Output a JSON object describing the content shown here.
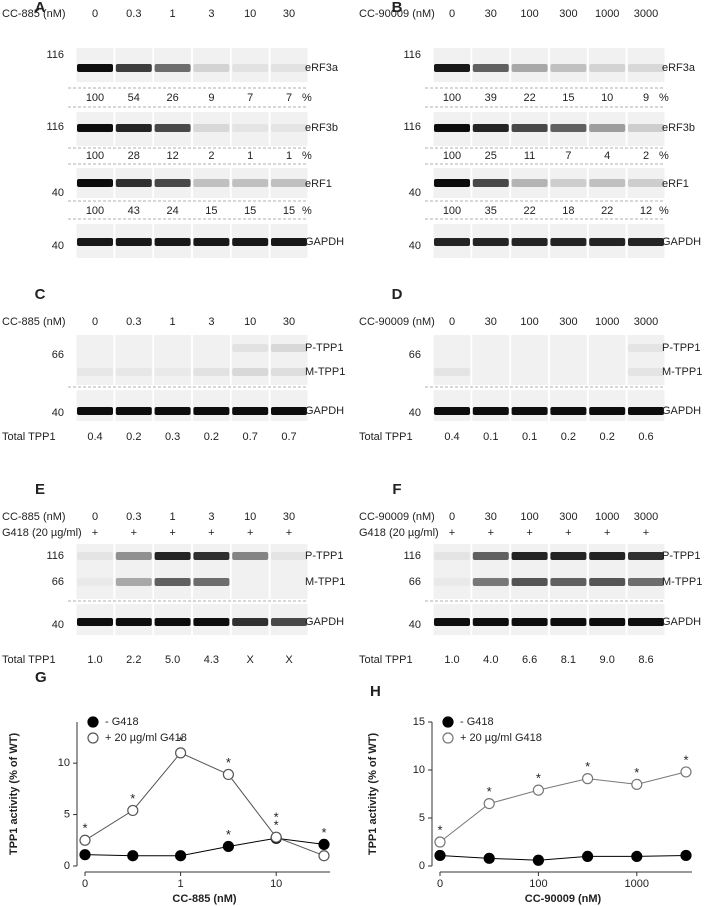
{
  "panels": [
    {
      "letter": "A",
      "treatments": [
        {
          "label": "CC-885 (nM)",
          "values": [
            "0",
            "0.3",
            "1",
            "3",
            "10",
            "30"
          ]
        }
      ],
      "blots": [
        {
          "markers": [
            "116"
          ],
          "labels": [
            "eRF3a"
          ],
          "quant": [
            "100",
            "54",
            "26",
            "9",
            "7",
            "7"
          ],
          "unit": "%"
        },
        {
          "markers": [
            "116"
          ],
          "labels": [
            "eRF3b"
          ],
          "quant": [
            "100",
            "28",
            "12",
            "2",
            "1",
            "1"
          ],
          "unit": "%"
        },
        {
          "markers": [
            "40"
          ],
          "labels": [
            "eRF1"
          ],
          "quant": [
            "100",
            "43",
            "24",
            "15",
            "15",
            "15"
          ],
          "unit": "%"
        },
        {
          "markers": [
            "40"
          ],
          "labels": [
            "GAPDH"
          ]
        }
      ]
    },
    {
      "letter": "B",
      "treatments": [
        {
          "label": "CC-90009 (nM)",
          "values": [
            "0",
            "30",
            "100",
            "300",
            "1000",
            "3000"
          ]
        }
      ],
      "blots": [
        {
          "markers": [
            "116"
          ],
          "labels": [
            "eRF3a"
          ],
          "quant": [
            "100",
            "39",
            "22",
            "15",
            "10",
            "9"
          ],
          "unit": "%"
        },
        {
          "markers": [
            "116"
          ],
          "labels": [
            "eRF3b"
          ],
          "quant": [
            "100",
            "25",
            "11",
            "7",
            "4",
            "2"
          ],
          "unit": "%"
        },
        {
          "markers": [
            "40"
          ],
          "labels": [
            "eRF1"
          ],
          "quant": [
            "100",
            "35",
            "22",
            "18",
            "22",
            "12"
          ],
          "unit": "%"
        },
        {
          "markers": [
            "40"
          ],
          "labels": [
            "GAPDH"
          ]
        }
      ]
    },
    {
      "letter": "C",
      "treatments": [
        {
          "label": "CC-885 (nM)",
          "values": [
            "0",
            "0.3",
            "1",
            "3",
            "10",
            "30"
          ]
        }
      ],
      "blots": [
        {
          "markers": [
            "66"
          ],
          "labels": [
            "P-TPP1",
            "M-TPP1"
          ]
        },
        {
          "markers": [
            "40"
          ],
          "labels": [
            "GAPDH"
          ]
        }
      ],
      "total": {
        "label": "Total TPP1",
        "values": [
          "0.4",
          "0.2",
          "0.3",
          "0.2",
          "0.7",
          "0.7"
        ]
      }
    },
    {
      "letter": "D",
      "treatments": [
        {
          "label": "CC-90009 (nM)",
          "values": [
            "0",
            "30",
            "100",
            "300",
            "1000",
            "3000"
          ]
        }
      ],
      "blots": [
        {
          "markers": [
            "66"
          ],
          "labels": [
            "P-TPP1",
            "M-TPP1"
          ]
        },
        {
          "markers": [
            "40"
          ],
          "labels": [
            "GAPDH"
          ]
        }
      ],
      "total": {
        "label": "Total TPP1",
        "values": [
          "0.4",
          "0.1",
          "0.1",
          "0.2",
          "0.2",
          "0.6"
        ]
      }
    },
    {
      "letter": "E",
      "treatments": [
        {
          "label": "CC-885 (nM)",
          "values": [
            "0",
            "0.3",
            "1",
            "3",
            "10",
            "30"
          ]
        },
        {
          "label": "G418 (20 µg/ml)",
          "values": [
            "+",
            "+",
            "+",
            "+",
            "+",
            "+"
          ]
        }
      ],
      "blots": [
        {
          "markers": [
            "116",
            "66"
          ],
          "labels": [
            "P-TPP1",
            "M-TPP1"
          ]
        },
        {
          "markers": [
            "40"
          ],
          "labels": [
            "GAPDH"
          ]
        }
      ],
      "total": {
        "label": "Total TPP1",
        "values": [
          "1.0",
          "2.2",
          "5.0",
          "4.3",
          "X",
          "X"
        ]
      }
    },
    {
      "letter": "F",
      "treatments": [
        {
          "label": "CC-90009 (nM)",
          "values": [
            "0",
            "30",
            "100",
            "300",
            "1000",
            "3000"
          ]
        },
        {
          "label": "G418 (20 µg/ml)",
          "values": [
            "+",
            "+",
            "+",
            "+",
            "+",
            "+"
          ]
        }
      ],
      "blots": [
        {
          "markers": [
            "116",
            "66"
          ],
          "labels": [
            "P-TPP1",
            "M-TPP1"
          ]
        },
        {
          "markers": [
            "40"
          ],
          "labels": [
            "GAPDH"
          ]
        }
      ],
      "total": {
        "label": "Total TPP1",
        "values": [
          "1.0",
          "4.0",
          "6.6",
          "8.1",
          "9.0",
          "8.6"
        ]
      }
    }
  ],
  "chart_data": [
    {
      "type": "line",
      "title": "G",
      "x_label": "CC-885 (nM)",
      "y_label": "TPP1 activity (% of WT)",
      "categories": [
        "0",
        null,
        "1",
        null,
        "10",
        null
      ],
      "ylim": [
        0,
        14
      ],
      "yticks": [
        0,
        5,
        10
      ],
      "series": [
        {
          "name": "- G418",
          "color": "#000000",
          "marker_fill": "#000000",
          "values": [
            1.1,
            1.0,
            1.0,
            1.9,
            2.7,
            2.1
          ],
          "annotations": [
            null,
            null,
            null,
            "*",
            "*",
            "*"
          ]
        },
        {
          "name": "+ 20 µg/ml G418",
          "color": "#555555",
          "marker_fill": "#ffffff",
          "values": [
            2.5,
            5.4,
            11.0,
            8.9,
            2.8,
            1.0
          ],
          "annotations": [
            "*",
            "*",
            "*",
            "*",
            "*",
            null
          ]
        }
      ]
    },
    {
      "type": "line",
      "title": "H",
      "x_label": "CC-90009 (nM)",
      "y_label": "TPP1 activity (% of WT)",
      "categories": [
        "0",
        null,
        "100",
        null,
        "1000",
        null
      ],
      "ylim": [
        0,
        15
      ],
      "yticks": [
        0,
        5,
        10,
        15
      ],
      "series": [
        {
          "name": "- G418",
          "color": "#000000",
          "marker_fill": "#000000",
          "values": [
            1.1,
            0.8,
            0.6,
            1.0,
            1.0,
            1.1
          ],
          "annotations": [
            null,
            null,
            null,
            null,
            null,
            null
          ]
        },
        {
          "name": "+ 20 µg/ml G418",
          "color": "#777777",
          "marker_fill": "#ffffff",
          "values": [
            2.5,
            6.5,
            7.9,
            9.1,
            8.5,
            9.8
          ],
          "annotations": [
            "*",
            "*",
            "*",
            "*",
            "*",
            "*"
          ]
        }
      ]
    }
  ]
}
